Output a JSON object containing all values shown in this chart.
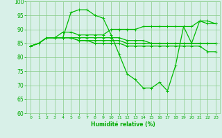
{
  "xlabel": "Humidité relative (%)",
  "x": [
    0,
    1,
    2,
    3,
    4,
    5,
    6,
    7,
    8,
    9,
    10,
    11,
    12,
    13,
    14,
    15,
    16,
    17,
    18,
    19,
    20,
    21,
    22,
    23
  ],
  "lines": [
    [
      84,
      85,
      87,
      87,
      87,
      96,
      97,
      97,
      95,
      94,
      88,
      81,
      74,
      72,
      69,
      69,
      71,
      68,
      77,
      91,
      85,
      93,
      92,
      92
    ],
    [
      84,
      85,
      87,
      87,
      89,
      89,
      88,
      88,
      88,
      88,
      90,
      90,
      90,
      90,
      91,
      91,
      91,
      91,
      91,
      91,
      91,
      93,
      93,
      92
    ],
    [
      84,
      85,
      87,
      87,
      87,
      87,
      87,
      87,
      87,
      87,
      87,
      87,
      86,
      86,
      86,
      85,
      85,
      85,
      85,
      85,
      85,
      85,
      85,
      85
    ],
    [
      84,
      85,
      87,
      87,
      87,
      87,
      86,
      86,
      86,
      86,
      86,
      86,
      85,
      85,
      85,
      85,
      85,
      85,
      85,
      85,
      85,
      85,
      85,
      85
    ],
    [
      84,
      85,
      87,
      87,
      87,
      87,
      86,
      86,
      85,
      85,
      85,
      85,
      84,
      84,
      84,
      84,
      84,
      84,
      84,
      84,
      84,
      84,
      82,
      82
    ]
  ],
  "line_color": "#00bb00",
  "bg_color": "#d8f0e8",
  "grid_color": "#88cc88",
  "ylim": [
    60,
    100
  ],
  "xlim_min": -0.5,
  "xlim_max": 23.5,
  "yticks": [
    60,
    65,
    70,
    75,
    80,
    85,
    90,
    95,
    100
  ],
  "xticks": [
    0,
    1,
    2,
    3,
    4,
    5,
    6,
    7,
    8,
    9,
    10,
    11,
    12,
    13,
    14,
    15,
    16,
    17,
    18,
    19,
    20,
    21,
    22,
    23
  ],
  "tick_color": "#00aa00",
  "label_color": "#00aa00",
  "marker": "+",
  "marker_size": 3.5,
  "linewidth": 0.9
}
